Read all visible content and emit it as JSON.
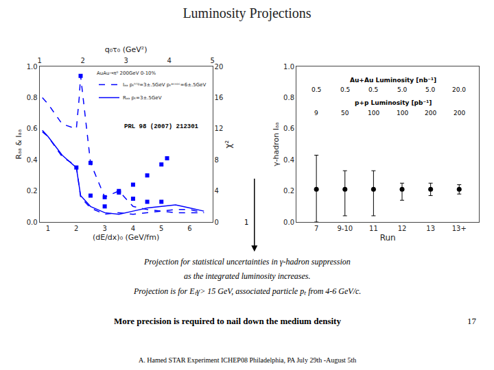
{
  "title": "Luminosity Projections",
  "annotations": [
    {
      "text": "A. Hamed STAR Experiment ICHEP08 Philadelphia, PA July 29th -August 5th"
    },
    {
      "text": "Projection for statistical uncertainties in γ-hadron suppression"
    },
    {
      "text": "as the integrated luminosity increases."
    },
    {
      "text": "Projection is for Eₜγ> 15 GeV, associated particle pₜ from 4-6 GeV/c."
    },
    {
      "text": "More precision is required to nail down the medium density"
    },
    {
      "text": "17"
    },
    {
      "text": "1"
    }
  ],
  "chart_data": [
    {
      "type": "line",
      "xlabel": "(dE/dx)₀ (GeV/fm)",
      "ylabel": "Rₐₐ & Iₐₐ",
      "y2label": "χ²",
      "x2label": "q₀τ₀ (GeV²)",
      "xlim": [
        0.7,
        6.8
      ],
      "xticks": [
        1,
        2,
        3,
        4,
        5,
        6
      ],
      "ylim": [
        0.0,
        1.0
      ],
      "yticks": [
        {
          "value": 0.0,
          "label": "0.0"
        },
        0.2,
        0.4,
        0.6,
        0.8,
        {
          "value": 1.0,
          "label": "1.0"
        }
      ],
      "y2lim": [
        0,
        20
      ],
      "y2ticks": [
        0,
        4,
        8,
        12,
        16,
        20
      ],
      "x2lim": [
        1.0,
        5.0
      ],
      "x2ticks": [
        1,
        2,
        3,
        4,
        5
      ],
      "grid": false,
      "legend": "upper right",
      "annotations": [
        {
          "text": "PRL 98 (2007) 212301"
        },
        {
          "text": "AuAu→π⁰ 200GeV 0-10%"
        }
      ],
      "series": [
        {
          "name": "Rₐₐ pₜ=3±.5GeV",
          "color": "#0000ff",
          "line_style": "solid",
          "marker": "none",
          "x": [
            0.8,
            1.0,
            1.5,
            2.0,
            2.15,
            2.5,
            3.0,
            3.5,
            4.0,
            4.5,
            5.0,
            5.5,
            6.0,
            6.5
          ],
          "values": [
            0.59,
            0.55,
            0.43,
            0.35,
            0.17,
            0.1,
            0.06,
            0.05,
            0.07,
            0.09,
            0.1,
            0.11,
            0.09,
            0.07
          ]
        },
        {
          "color": "#0000ff",
          "line_style": "none",
          "marker": "square",
          "x": [
            2.0,
            2.5,
            3.0,
            3.5,
            4.0,
            4.5,
            5.0,
            5.2
          ],
          "values": [
            0.35,
            0.17,
            0.1,
            0.19,
            0.24,
            0.3,
            0.37,
            0.41
          ]
        },
        {
          "name": "Iₐₐ pₜᵗʳⁱᵍ=3±.5GeV pₜᵃˢˢᵒᶜ=6±.5GeV",
          "color": "#0000ff",
          "line_style": "dashed",
          "marker": "none",
          "x": [
            0.8,
            1.0,
            1.5,
            2.0,
            2.1,
            2.15,
            2.5,
            3.0,
            3.5,
            4.0,
            4.5,
            5.0,
            5.5,
            6.0,
            6.5
          ],
          "values": [
            0.8,
            0.76,
            0.63,
            0.6,
            0.8,
            0.94,
            0.38,
            0.16,
            0.2,
            0.1,
            0.08,
            0.07,
            0.06,
            0.06,
            0.06
          ]
        },
        {
          "color": "#0000ff",
          "line_style": "dashed",
          "marker": "none",
          "x": [
            0.8,
            1.0,
            1.5,
            2.0,
            2.15,
            2.5,
            3.0,
            3.5,
            4.0,
            4.5,
            5.0,
            5.5,
            6.0,
            6.5
          ],
          "values": [
            0.58,
            0.55,
            0.42,
            0.36,
            0.16,
            0.09,
            0.05,
            0.06,
            0.05,
            0.06,
            0.07,
            0.08,
            0.08,
            0.06
          ]
        },
        {
          "color": "#0000ff",
          "line_style": "none",
          "marker": "square",
          "x": [
            2.15,
            2.5,
            3.0,
            3.5,
            4.0,
            4.5,
            5.0
          ],
          "values": [
            0.94,
            0.38,
            0.16,
            0.2,
            0.15,
            0.13,
            0.13
          ]
        }
      ]
    },
    {
      "type": "scatter",
      "xlabel": "Run",
      "ylabel": "γ-hadron Iₐₐ",
      "categories": [
        "7",
        "9-10",
        "11",
        "12",
        "13",
        "13+"
      ],
      "values": [
        0.21,
        0.21,
        0.21,
        0.21,
        0.21,
        0.21
      ],
      "error_plus": [
        0.22,
        0.12,
        0.12,
        0.04,
        0.04,
        0.03
      ],
      "error_minus": [
        0.21,
        0.17,
        0.17,
        0.07,
        0.04,
        0.03
      ],
      "color": "#000000",
      "marker": "circle",
      "ylim": [
        0.0,
        1.0
      ],
      "yticks": [
        {
          "value": 0.0,
          "label": "0.0"
        },
        0.2,
        0.4,
        0.6,
        0.8,
        {
          "value": 1.0,
          "label": "1.0"
        }
      ],
      "grid": false,
      "annotations": [
        {
          "text": "Au+Au Luminosity [nb⁻¹]",
          "labels": [
            "0.5",
            "0.5",
            "0.5",
            "5.0",
            "5.0",
            "20.0"
          ]
        },
        {
          "text": "p+p Luminosity [pb⁻¹]",
          "labels": [
            "9",
            "50",
            "100",
            "100",
            "200",
            "200"
          ]
        }
      ]
    }
  ]
}
